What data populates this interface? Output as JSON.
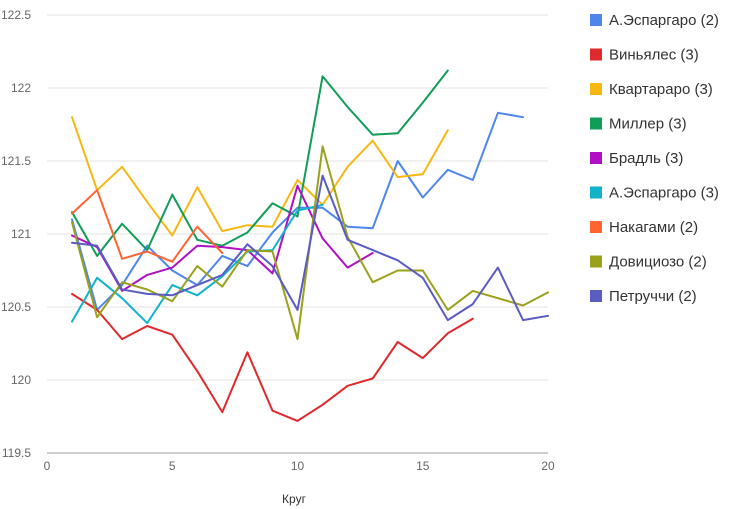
{
  "chart_data": {
    "type": "line",
    "title": "",
    "xlabel": "Круг",
    "ylabel": "",
    "xlim": [
      0,
      20
    ],
    "ylim": [
      119.5,
      122.5
    ],
    "x_ticks": [
      "0",
      "5",
      "10",
      "15",
      "20"
    ],
    "y_ticks": [
      "119.5",
      "120",
      "120.5",
      "121",
      "121.5",
      "122",
      "122.5"
    ],
    "grid": "horizontal",
    "legend_position": "right",
    "series": [
      {
        "name": "А.Эспаргаро (2)",
        "color": "#4f86ec",
        "x": [
          1,
          2,
          3,
          4,
          5,
          6,
          7,
          8,
          9,
          10,
          11,
          12,
          13,
          14,
          15,
          16,
          17,
          18,
          19
        ],
        "values": [
          121.1,
          120.48,
          120.65,
          120.92,
          120.75,
          120.65,
          120.85,
          120.78,
          121.01,
          121.18,
          121.18,
          121.05,
          121.04,
          121.5,
          121.25,
          121.44,
          121.37,
          121.83,
          121.8
        ]
      },
      {
        "name": "Виньялес (3)",
        "color": "#e0292d",
        "x": [
          1,
          2,
          3,
          4,
          5,
          6,
          7,
          8,
          9,
          10,
          11,
          12,
          13,
          14,
          15,
          16,
          17
        ],
        "values": [
          120.59,
          120.48,
          120.28,
          120.37,
          120.31,
          120.06,
          119.78,
          120.19,
          119.79,
          119.72,
          119.83,
          119.96,
          120.01,
          120.26,
          120.15,
          120.32,
          120.42
        ]
      },
      {
        "name": "Квартараро (3)",
        "color": "#f8b712",
        "x": [
          1,
          2,
          3,
          4,
          5,
          6,
          7,
          8,
          9,
          10,
          11,
          12,
          13,
          14,
          15,
          16
        ],
        "values": [
          121.8,
          121.3,
          121.46,
          121.22,
          120.99,
          121.32,
          121.02,
          121.06,
          121.05,
          121.37,
          121.2,
          121.46,
          121.64,
          121.39,
          121.41,
          121.71
        ]
      },
      {
        "name": "Миллер (3)",
        "color": "#0f9d58",
        "x": [
          1,
          2,
          3,
          4,
          5,
          6,
          7,
          8,
          9,
          10,
          11,
          12,
          13,
          14,
          15,
          16
        ],
        "values": [
          121.15,
          120.85,
          121.07,
          120.89,
          121.27,
          120.96,
          120.92,
          121.01,
          121.21,
          121.12,
          122.08,
          121.87,
          121.68,
          121.69,
          121.9,
          122.12
        ]
      },
      {
        "name": "Брадль (3)",
        "color": "#b10fc4",
        "x": [
          1,
          2,
          3,
          4,
          5,
          6,
          7,
          8,
          9,
          10,
          11,
          12,
          13
        ],
        "values": [
          120.99,
          120.91,
          120.61,
          120.72,
          120.77,
          120.92,
          120.91,
          120.89,
          120.73,
          121.33,
          120.97,
          120.77,
          120.87
        ]
      },
      {
        "name": "А.Эспаргаро (3)",
        "color": "#11b3c9",
        "x": [
          1,
          2,
          3,
          4,
          5,
          6,
          7,
          8,
          9,
          10,
          11
        ],
        "values": [
          120.4,
          120.7,
          120.56,
          120.39,
          120.65,
          120.58,
          120.71,
          120.88,
          120.89,
          121.16,
          121.2
        ]
      },
      {
        "name": "Накагами (2)",
        "color": "#ff6431",
        "x": [
          1,
          2,
          3,
          4,
          5,
          6,
          7
        ],
        "values": [
          121.14,
          121.3,
          120.83,
          120.88,
          120.81,
          121.05,
          120.87
        ]
      },
      {
        "name": "Довициозо (2)",
        "color": "#9aa21b",
        "x": [
          1,
          2,
          3,
          4,
          5,
          6,
          7,
          8,
          9,
          10,
          11,
          12,
          13,
          14,
          15,
          16,
          17,
          18,
          19,
          20
        ],
        "values": [
          121.08,
          120.43,
          120.67,
          120.62,
          120.54,
          120.78,
          120.64,
          120.89,
          120.88,
          120.28,
          121.6,
          120.98,
          120.67,
          120.75,
          120.75,
          120.48,
          120.61,
          120.56,
          120.51,
          120.6
        ]
      },
      {
        "name": "Петруччи (2)",
        "color": "#5b5cc2",
        "x": [
          1,
          2,
          3,
          4,
          5,
          6,
          7,
          8,
          9,
          10,
          11,
          12,
          13,
          14,
          15,
          16,
          17,
          18,
          19,
          20
        ],
        "values": [
          120.94,
          120.92,
          120.62,
          120.59,
          120.58,
          120.65,
          120.72,
          120.93,
          120.78,
          120.48,
          121.4,
          120.96,
          120.89,
          120.82,
          120.7,
          120.41,
          120.52,
          120.77,
          120.41,
          120.44
        ]
      }
    ]
  }
}
